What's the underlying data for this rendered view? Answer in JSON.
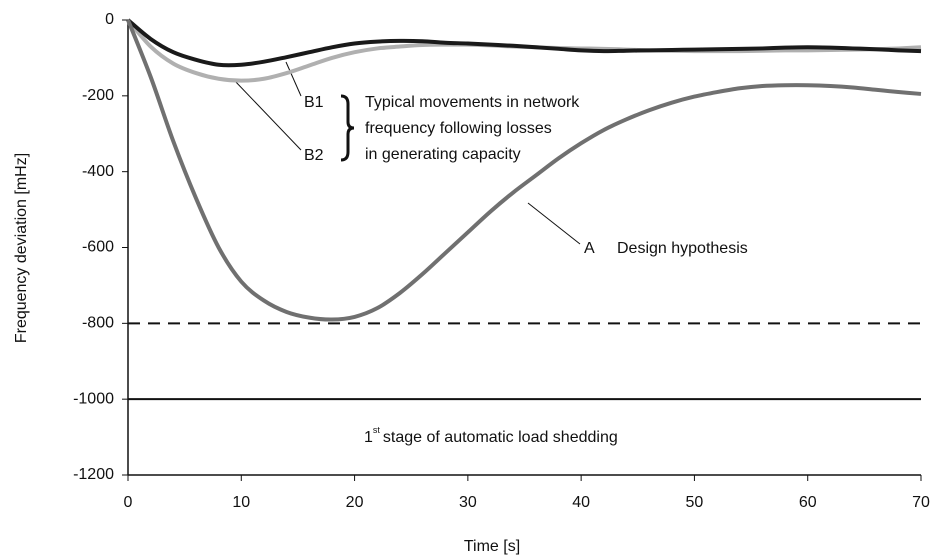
{
  "chart_data": {
    "type": "line",
    "xlabel": "Time   [s]",
    "ylabel": "Frequency deviation [mHz]",
    "x": [
      0,
      2,
      4,
      6,
      8,
      10,
      12,
      14,
      16,
      18,
      20,
      22,
      24,
      26,
      28,
      30,
      32,
      34,
      36,
      38,
      40,
      42,
      44,
      46,
      48,
      50,
      52,
      54,
      56,
      58,
      60,
      62,
      64,
      66,
      68,
      70
    ],
    "series": [
      {
        "name": "A",
        "color": "#707070",
        "values": [
          0,
          -150,
          -320,
          -470,
          -600,
          -690,
          -740,
          -770,
          -785,
          -790,
          -783,
          -760,
          -720,
          -670,
          -615,
          -560,
          -505,
          -455,
          -410,
          -365,
          -325,
          -290,
          -262,
          -238,
          -218,
          -202,
          -190,
          -180,
          -174,
          -172,
          -172,
          -174,
          -178,
          -184,
          -190,
          -195
        ]
      },
      {
        "name": "B1",
        "color": "#1a1a1a",
        "values": [
          0,
          -50,
          -85,
          -105,
          -118,
          -118,
          -110,
          -98,
          -85,
          -72,
          -62,
          -57,
          -55,
          -56,
          -60,
          -62,
          -65,
          -68,
          -72,
          -76,
          -80,
          -82,
          -81,
          -80,
          -79,
          -78,
          -77,
          -76,
          -75,
          -73,
          -72,
          -73,
          -75,
          -77,
          -80,
          -82
        ]
      },
      {
        "name": "B2",
        "color": "#b0b0b0",
        "values": [
          0,
          -70,
          -115,
          -140,
          -155,
          -160,
          -155,
          -140,
          -120,
          -100,
          -85,
          -75,
          -70,
          -66,
          -65,
          -65,
          -67,
          -70,
          -72,
          -74,
          -75,
          -76,
          -78,
          -80,
          -81,
          -82,
          -82,
          -82,
          -81,
          -80,
          -80,
          -79,
          -78,
          -77,
          -75,
          -72
        ]
      }
    ],
    "reference_lines": [
      {
        "value": -800,
        "style": "dashed"
      },
      {
        "value": -1000,
        "style": "solid"
      }
    ],
    "annotations": {
      "design": "Design hypothesis",
      "typical": [
        "Typical movements in network",
        "frequency following losses",
        "in generating capacity"
      ],
      "shedding": {
        "number": "1",
        "suffix": "st",
        "text": "stage of automatic load shedding"
      }
    },
    "xlim": [
      0,
      70
    ],
    "ylim": [
      -1200,
      0
    ],
    "xticks": [
      0,
      10,
      20,
      30,
      40,
      50,
      60,
      70
    ],
    "yticks": [
      -1200,
      -1000,
      -800,
      -600,
      -400,
      -200,
      0
    ]
  }
}
